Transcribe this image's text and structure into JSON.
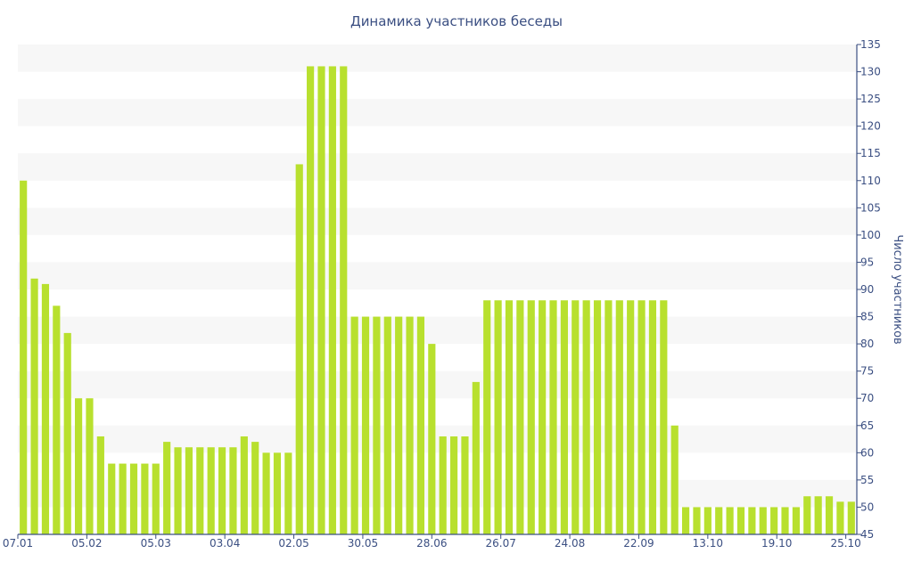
{
  "chart_data": {
    "type": "bar",
    "title": "Динамика участников беседы",
    "xlabel": "",
    "ylabel": "Число участников",
    "ylim": [
      45,
      135
    ],
    "y_ticks": [
      45,
      50,
      55,
      60,
      65,
      70,
      75,
      80,
      85,
      90,
      95,
      100,
      105,
      110,
      115,
      120,
      125,
      130,
      135
    ],
    "y_axis_side": "right",
    "grid": "horizontal alternating bands",
    "legend": "none",
    "bar_color": "#b8e02e",
    "band_color": "#f7f7f7",
    "axis_color": "#3b4f82",
    "x_tick_labels": [
      {
        "label": "07.01",
        "index": 0
      },
      {
        "label": "05.02",
        "index": 6.25
      },
      {
        "label": "05.03",
        "index": 12.5
      },
      {
        "label": "03.04",
        "index": 18.75
      },
      {
        "label": "02.05",
        "index": 25
      },
      {
        "label": "30.05",
        "index": 31.25
      },
      {
        "label": "28.06",
        "index": 37.5
      },
      {
        "label": "26.07",
        "index": 43.75
      },
      {
        "label": "24.08",
        "index": 50
      },
      {
        "label": "22.09",
        "index": 56.25
      },
      {
        "label": "13.10",
        "index": 62.5
      },
      {
        "label": "19.10",
        "index": 68.75
      },
      {
        "label": "25.10",
        "index": 75
      }
    ],
    "values": [
      110,
      92,
      91,
      87,
      82,
      70,
      70,
      63,
      58,
      58,
      58,
      58,
      58,
      62,
      61,
      61,
      61,
      61,
      61,
      61,
      63,
      62,
      60,
      60,
      60,
      113,
      131,
      131,
      131,
      131,
      85,
      85,
      85,
      85,
      85,
      85,
      85,
      80,
      63,
      63,
      63,
      73,
      88,
      88,
      88,
      88,
      88,
      88,
      88,
      88,
      88,
      88,
      88,
      88,
      88,
      88,
      88,
      88,
      88,
      65,
      50,
      50,
      50,
      50,
      50,
      50,
      50,
      50,
      50,
      50,
      50,
      52,
      52,
      52,
      51,
      51
    ]
  }
}
